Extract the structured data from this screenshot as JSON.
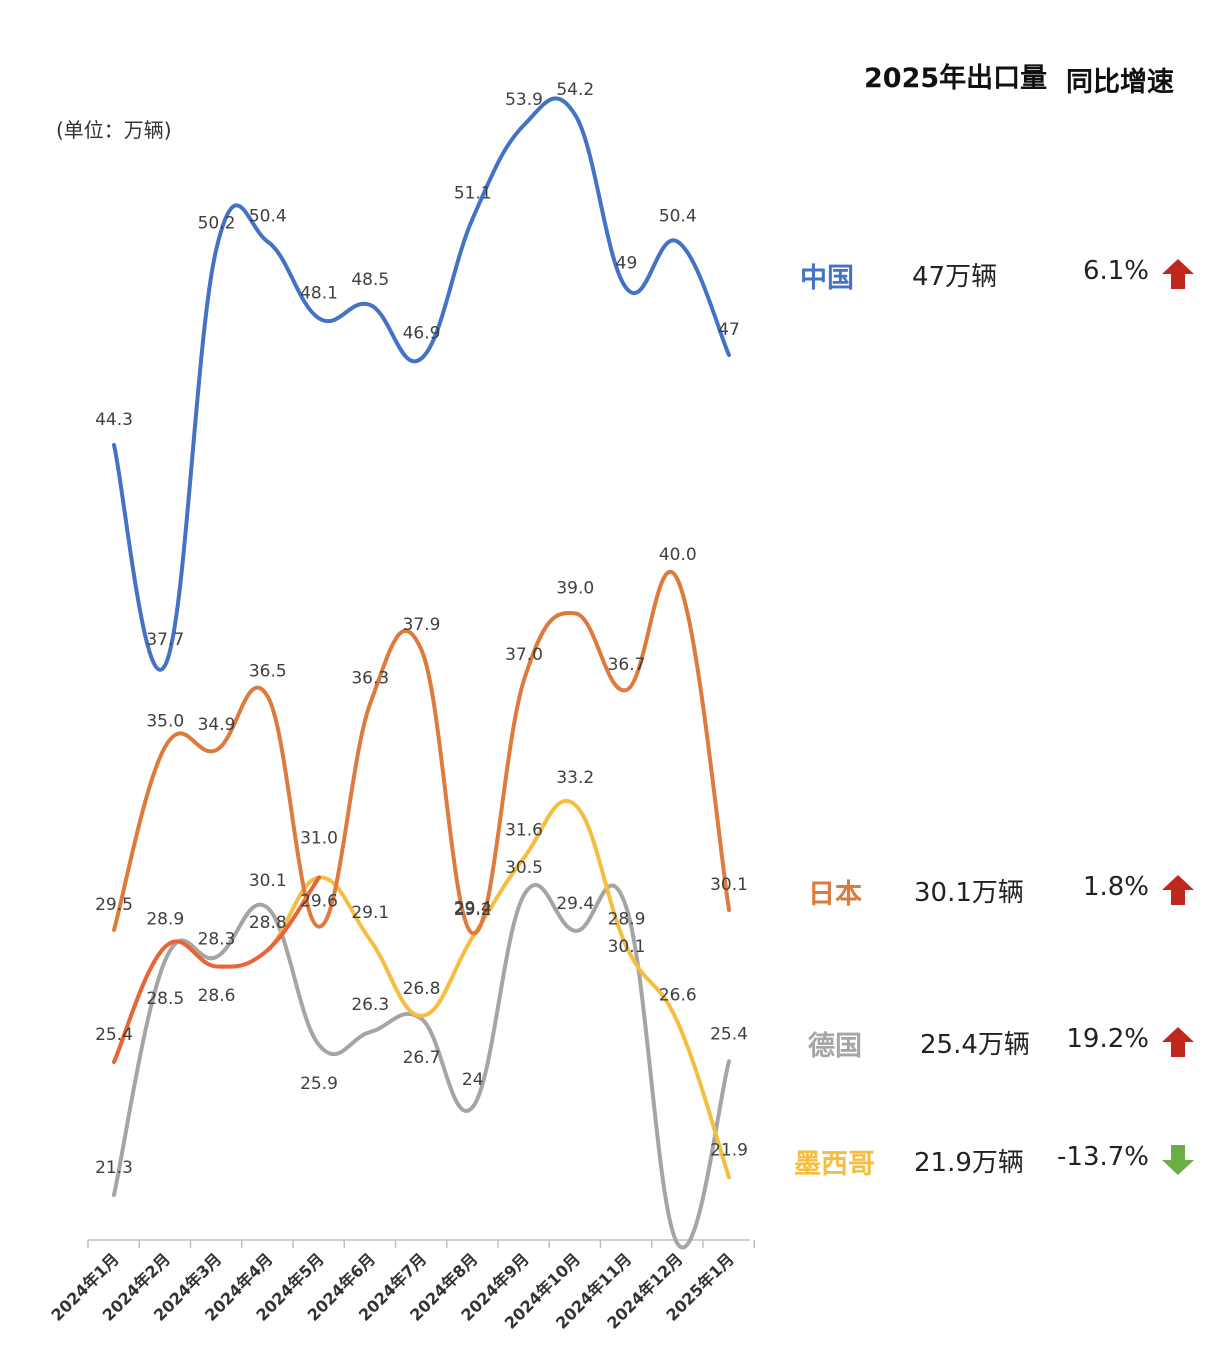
{
  "unit_label": "(单位：万辆)",
  "header": {
    "volume": "2025年出口量",
    "yoy": "同比增速"
  },
  "legend": [
    {
      "key": "china",
      "name": "中国",
      "volume": "47万辆",
      "yoy": "6.1%",
      "trend": "up",
      "color": "#4472C4"
    },
    {
      "key": "japan",
      "name": "日本",
      "volume": "30.1万辆",
      "yoy": "1.8%",
      "trend": "up",
      "color": "#DD7A3C"
    },
    {
      "key": "germany",
      "name": "德国",
      "volume": "25.4万辆",
      "yoy": "19.2%",
      "trend": "up",
      "color": "#A5A5A5"
    },
    {
      "key": "mexico",
      "name": "墨西哥",
      "volume": "21.9万辆",
      "yoy": "-13.7%",
      "trend": "down",
      "color": "#F5BE41"
    }
  ],
  "arrow_colors": {
    "up": "#C0281E",
    "down": "#6AAE45"
  },
  "chart_data": {
    "type": "line",
    "categories": [
      "2024年1月",
      "2024年2月",
      "2024年3月",
      "2024年4月",
      "2024年5月",
      "2024年6月",
      "2024年7月",
      "2024年8月",
      "2024年9月",
      "2024年10月",
      "2024年11月",
      "2024年12月",
      "2025年1月"
    ],
    "series": [
      {
        "name": "中国",
        "color": "#4472C4",
        "values": [
          44.3,
          37.7,
          50.2,
          50.4,
          48.1,
          48.5,
          46.9,
          51.1,
          53.9,
          54.2,
          49,
          50.4,
          47
        ],
        "labels": [
          "44.3",
          "37.7",
          "50.2",
          "50.4",
          "48.1",
          "48.5",
          "46.9",
          "51.1",
          "53.9",
          "54.2",
          "49",
          "50.4",
          "47"
        ]
      },
      {
        "name": "日本",
        "color": "#DD7A3C",
        "values": [
          29.5,
          35.0,
          34.9,
          36.5,
          29.6,
          36.3,
          37.9,
          29.4,
          37.0,
          39.0,
          36.7,
          40.0,
          30.1
        ],
        "labels": [
          "29.5",
          "35.0",
          "34.9",
          "36.5",
          "29.6",
          "36.3",
          "37.9",
          "29.4",
          "37.0",
          "39.0",
          "36.7",
          "40.0",
          "30.1"
        ]
      },
      {
        "name": "德国",
        "color": "#A5A5A5",
        "values": [
          21.3,
          28.5,
          28.6,
          30.1,
          25.9,
          26.3,
          26.7,
          24,
          30.5,
          29.4,
          30.1,
          18.6,
          25.4
        ],
        "labels": [
          "21.3",
          "28.5",
          "28.6",
          "30.1",
          "25.9",
          "26.3",
          "26.7",
          "24",
          "30.5",
          "29.4",
          "30.1",
          "",
          "25.4"
        ]
      },
      {
        "name": "墨西哥",
        "color": "#F5BE41",
        "values": [
          25.4,
          28.9,
          28.3,
          28.8,
          31.0,
          29.1,
          26.8,
          29.2,
          31.6,
          33.2,
          28.9,
          26.6,
          21.9
        ],
        "labels": [
          "25.4",
          "28.9",
          "28.3",
          "28.8",
          "31.0",
          "29.1",
          "26.8",
          "29.2",
          "31.6",
          "33.2",
          "28.9",
          "26.6",
          "21.9"
        ]
      }
    ]
  }
}
